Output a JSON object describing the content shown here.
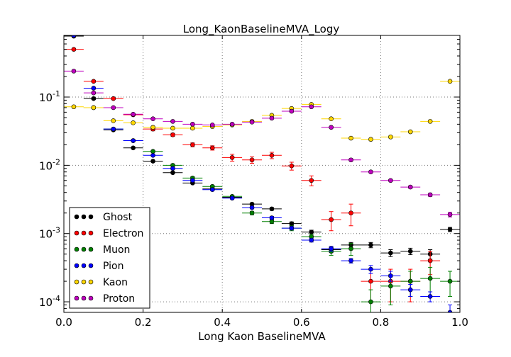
{
  "chart_data": {
    "type": "scatter",
    "title": "Long_KaonBaselineMVA_Logy",
    "xlabel": "Long Kaon BaselineMVA",
    "ylabel": "",
    "xlim": [
      0.0,
      1.0
    ],
    "ylim": [
      7e-05,
      0.8
    ],
    "yscale": "log",
    "grid": true,
    "legend_position": "lower-left",
    "x_ticks": [
      {
        "value": 0.0,
        "label": "0.0"
      },
      {
        "value": 0.2,
        "label": "0.2"
      },
      {
        "value": 0.4,
        "label": "0.4"
      },
      {
        "value": 0.6,
        "label": "0.6"
      },
      {
        "value": 0.8,
        "label": "0.8"
      },
      {
        "value": 1.0,
        "label": "1.0"
      }
    ],
    "y_ticks": [
      {
        "value": 0.0001,
        "base": "10",
        "exp": "-4"
      },
      {
        "value": 0.001,
        "base": "10",
        "exp": "-3"
      },
      {
        "value": 0.01,
        "base": "10",
        "exp": "-2"
      },
      {
        "value": 0.1,
        "base": "10",
        "exp": "-1"
      }
    ],
    "bin_half_width": 0.025,
    "x": [
      0.025,
      0.075,
      0.125,
      0.175,
      0.225,
      0.275,
      0.325,
      0.375,
      0.425,
      0.475,
      0.525,
      0.575,
      0.625,
      0.675,
      0.725,
      0.775,
      0.825,
      0.875,
      0.925,
      0.975
    ],
    "series": [
      {
        "name": "Ghost",
        "color": "#000000",
        "values": [
          0.78,
          0.095,
          0.033,
          0.018,
          0.0115,
          0.0078,
          0.0055,
          0.0045,
          0.0034,
          0.0027,
          0.0023,
          0.0014,
          0.00105,
          0.00058,
          0.00068,
          0.00068,
          0.00052,
          0.00055,
          0.0005,
          0.00115
        ],
        "errors": [
          0.02,
          0.003,
          0.001,
          0.0005,
          0.0003,
          0.0002,
          0.00015,
          0.00012,
          0.0001,
          0.0001,
          0.0001,
          8e-05,
          7e-05,
          5e-05,
          6e-05,
          6e-05,
          6e-05,
          6e-05,
          8e-05,
          8e-05
        ]
      },
      {
        "name": "Electron",
        "color": "#ff0000",
        "values": [
          0.5,
          0.17,
          0.095,
          0.055,
          0.034,
          0.028,
          0.02,
          0.018,
          0.013,
          0.012,
          0.014,
          0.0098,
          0.006,
          0.0016,
          0.002,
          0.0002,
          0.0002,
          0.0002,
          0.0004,
          0
        ],
        "errors": [
          0.015,
          0.005,
          0.003,
          0.002,
          0.002,
          0.0015,
          0.0013,
          0.0013,
          0.0015,
          0.0013,
          0.0015,
          0.0013,
          0.001,
          0.0005,
          0.0007,
          0.0001,
          0.0001,
          0.0001,
          0.00015,
          0
        ]
      },
      {
        "name": "Muon",
        "color": "#008000",
        "values": [
          0.8,
          0.07,
          0.034,
          0.023,
          0.016,
          0.01,
          0.0065,
          0.0049,
          0.0035,
          0.002,
          0.0015,
          0.0012,
          0.0009,
          0.00055,
          0.0006,
          0.0001,
          0.00017,
          0.0002,
          0.00022,
          0.0002
        ],
        "errors": [
          0.02,
          0.002,
          0.001,
          0.0008,
          0.0005,
          0.0004,
          0.0003,
          0.0002,
          0.00015,
          0.00012,
          0.0001,
          0.0001,
          8e-05,
          7e-05,
          0.00012,
          5e-05,
          8e-05,
          8e-05,
          0.0001,
          8e-05
        ]
      },
      {
        "name": "Pion",
        "color": "#0000ff",
        "values": [
          0.8,
          0.135,
          0.034,
          0.023,
          0.014,
          0.009,
          0.006,
          0.0044,
          0.0033,
          0.0024,
          0.0017,
          0.0012,
          0.0008,
          0.0006,
          0.0004,
          0.0003,
          0.00024,
          0.00015,
          0.00012,
          7e-05
        ],
        "errors": [
          0.02,
          0.004,
          0.001,
          0.0007,
          0.0004,
          0.0003,
          0.0002,
          0.00015,
          0.0001,
          0.0001,
          8e-05,
          7e-05,
          5e-05,
          5e-05,
          3e-05,
          4e-05,
          4e-05,
          3e-05,
          2e-05,
          2e-05
        ]
      },
      {
        "name": "Kaon",
        "color": "#ffd700",
        "values": [
          0.072,
          0.07,
          0.045,
          0.042,
          0.036,
          0.035,
          0.035,
          0.037,
          0.039,
          0.044,
          0.054,
          0.068,
          0.078,
          0.048,
          0.025,
          0.024,
          0.026,
          0.031,
          0.044,
          0.17
        ],
        "errors": [
          0.002,
          0.002,
          0.001,
          0.001,
          0.001,
          0.001,
          0.001,
          0.001,
          0.001,
          0.001,
          0.001,
          0.001,
          0.001,
          0.001,
          0.001,
          0.001,
          0.001,
          0.001,
          0.001,
          0.002
        ]
      },
      {
        "name": "Proton",
        "color": "#bf00bf",
        "values": [
          0.24,
          0.115,
          0.07,
          0.056,
          0.048,
          0.044,
          0.04,
          0.039,
          0.04,
          0.043,
          0.049,
          0.062,
          0.072,
          0.036,
          0.012,
          0.008,
          0.006,
          0.0048,
          0.0037,
          0.0019
        ],
        "errors": [
          0.005,
          0.003,
          0.002,
          0.002,
          0.001,
          0.001,
          0.001,
          0.001,
          0.001,
          0.001,
          0.001,
          0.001,
          0.001,
          0.001,
          0.0005,
          0.0003,
          0.0002,
          0.0002,
          0.0002,
          0.00015
        ]
      }
    ]
  }
}
